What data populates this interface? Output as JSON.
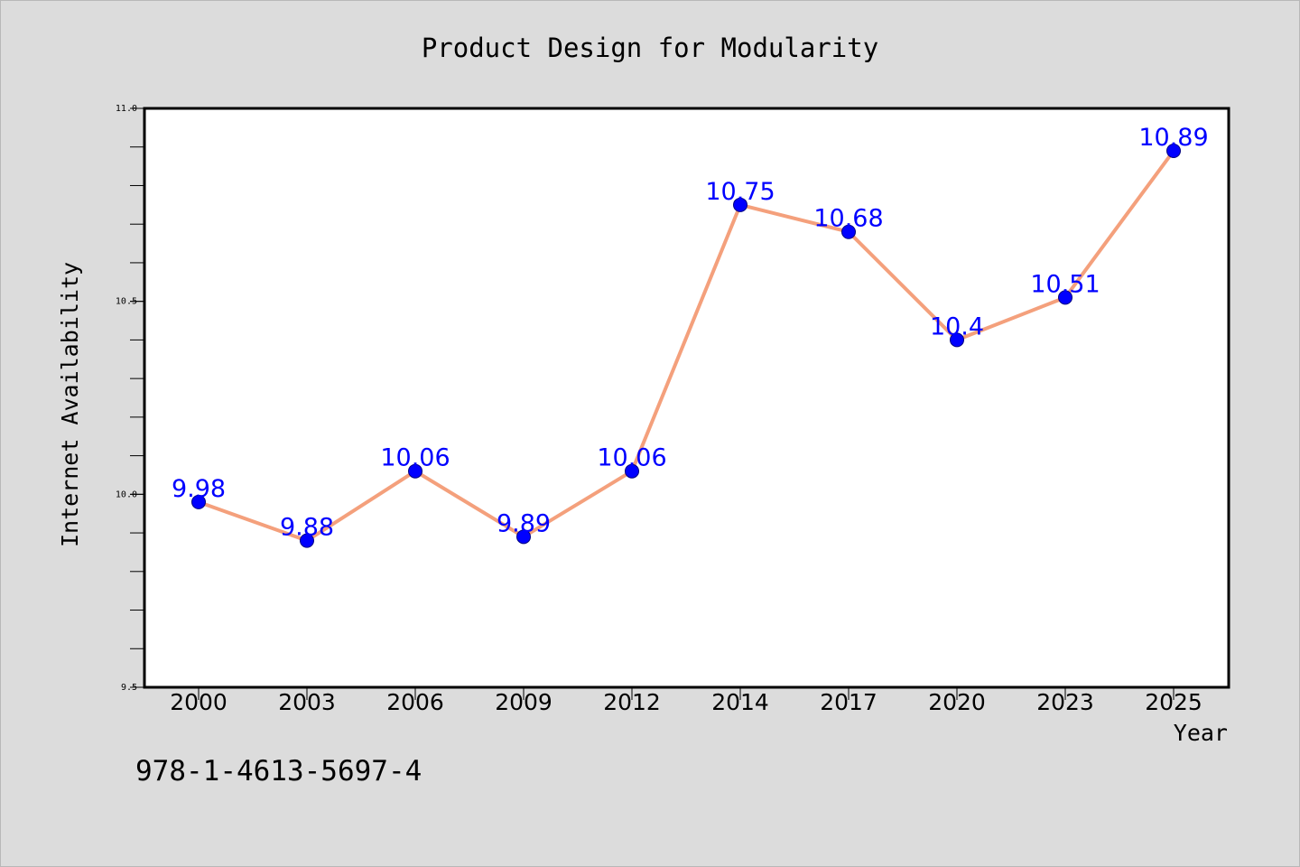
{
  "chart_data": {
    "type": "line",
    "title": "Product Design for Modularity",
    "xlabel": "Year",
    "ylabel": "Internet Availability",
    "categories": [
      "2000",
      "2003",
      "2006",
      "2009",
      "2012",
      "2014",
      "2017",
      "2020",
      "2023",
      "2025"
    ],
    "series": [
      {
        "values": [
          9.98,
          9.88,
          10.06,
          9.89,
          10.06,
          10.75,
          10.68,
          10.4,
          10.51,
          10.89
        ],
        "labels": [
          "9.98",
          "9.88",
          "10.06",
          "9.89",
          "10.06",
          "10.75",
          "10.68",
          "10.4",
          "10.51",
          "10.89"
        ]
      }
    ],
    "ylim": [
      9.5,
      11.0
    ],
    "yticks": [
      "9.5",
      "10.0",
      "10.5",
      "11.0"
    ],
    "grid": false,
    "line_color": "#f4a07c",
    "marker_color": "#0000ff",
    "label_color": "#0000ff",
    "background_color": "#dcdcdc",
    "plot_background_color": "#ffffff"
  },
  "annotation": "978-1-4613-5697-4"
}
